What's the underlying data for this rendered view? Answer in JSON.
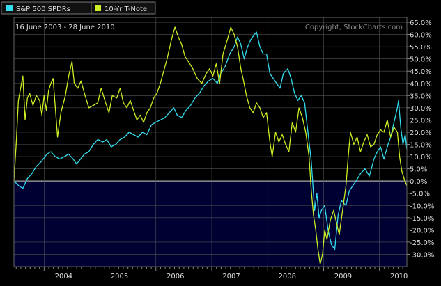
{
  "chart_data": {
    "type": "line",
    "date_range_label": "16 June 2003 - 28 June 2010",
    "copyright": "Copyright, StockCharts.com",
    "legend_position": "top-left",
    "grid": true,
    "y_unit": "percent change",
    "ylim": [
      -35,
      67
    ],
    "y_ticks": [
      "65.0%",
      "60.0%",
      "55.0%",
      "50.0%",
      "45.0%",
      "40.0%",
      "35.0%",
      "30.0%",
      "25.0%",
      "20.0%",
      "15.0%",
      "10.0%",
      "5.0%",
      "0.0%",
      "-5.0%",
      "-10.0%",
      "-15.0%",
      "-20.0%",
      "-25.0%",
      "-30.0%"
    ],
    "y_tick_values": [
      65,
      60,
      55,
      50,
      45,
      40,
      35,
      30,
      25,
      20,
      15,
      10,
      5,
      0,
      -5,
      -10,
      -15,
      -20,
      -25,
      -30
    ],
    "xlim": [
      2003.46,
      2010.49
    ],
    "x_ticks": [
      "2004",
      "2005",
      "2006",
      "2007",
      "2008",
      "2009",
      "2010"
    ],
    "x_tick_values": [
      2004.0,
      2005.0,
      2006.0,
      2007.0,
      2008.0,
      2009.0,
      2010.0
    ],
    "series": [
      {
        "name": "S&P 500 SPDRs",
        "color": "#33ddee",
        "points": [
          [
            2003.46,
            0
          ],
          [
            2003.55,
            -2
          ],
          [
            2003.62,
            -3
          ],
          [
            2003.7,
            1
          ],
          [
            2003.78,
            3
          ],
          [
            2003.86,
            6
          ],
          [
            2003.95,
            8
          ],
          [
            2004.05,
            11
          ],
          [
            2004.12,
            12
          ],
          [
            2004.2,
            10
          ],
          [
            2004.28,
            9
          ],
          [
            2004.36,
            10
          ],
          [
            2004.44,
            11
          ],
          [
            2004.52,
            9
          ],
          [
            2004.58,
            7
          ],
          [
            2004.65,
            9
          ],
          [
            2004.72,
            11
          ],
          [
            2004.8,
            12
          ],
          [
            2004.88,
            15
          ],
          [
            2004.96,
            17
          ],
          [
            2005.05,
            16
          ],
          [
            2005.12,
            17
          ],
          [
            2005.2,
            14
          ],
          [
            2005.28,
            15
          ],
          [
            2005.36,
            17
          ],
          [
            2005.44,
            18
          ],
          [
            2005.52,
            20
          ],
          [
            2005.6,
            19
          ],
          [
            2005.68,
            18
          ],
          [
            2005.76,
            20
          ],
          [
            2005.84,
            19
          ],
          [
            2005.92,
            23
          ],
          [
            2005.99,
            24
          ],
          [
            2006.08,
            25
          ],
          [
            2006.16,
            26
          ],
          [
            2006.24,
            28
          ],
          [
            2006.32,
            30
          ],
          [
            2006.38,
            27
          ],
          [
            2006.46,
            26
          ],
          [
            2006.54,
            29
          ],
          [
            2006.62,
            31
          ],
          [
            2006.7,
            34
          ],
          [
            2006.78,
            36
          ],
          [
            2006.86,
            39
          ],
          [
            2006.94,
            41
          ],
          [
            2007.02,
            42
          ],
          [
            2007.1,
            40
          ],
          [
            2007.16,
            44
          ],
          [
            2007.24,
            47
          ],
          [
            2007.32,
            52
          ],
          [
            2007.4,
            55
          ],
          [
            2007.46,
            59
          ],
          [
            2007.52,
            56
          ],
          [
            2007.58,
            50
          ],
          [
            2007.64,
            55
          ],
          [
            2007.7,
            58
          ],
          [
            2007.76,
            60
          ],
          [
            2007.8,
            61
          ],
          [
            2007.86,
            55
          ],
          [
            2007.92,
            52
          ],
          [
            2007.98,
            52
          ],
          [
            2008.04,
            44
          ],
          [
            2008.1,
            42
          ],
          [
            2008.16,
            40
          ],
          [
            2008.22,
            38
          ],
          [
            2008.28,
            44
          ],
          [
            2008.36,
            46
          ],
          [
            2008.42,
            42
          ],
          [
            2008.48,
            36
          ],
          [
            2008.54,
            33
          ],
          [
            2008.6,
            35
          ],
          [
            2008.66,
            32
          ],
          [
            2008.72,
            20
          ],
          [
            2008.78,
            8
          ],
          [
            2008.84,
            -12
          ],
          [
            2008.88,
            -5
          ],
          [
            2008.92,
            -15
          ],
          [
            2008.96,
            -12
          ],
          [
            2009.02,
            -10
          ],
          [
            2009.08,
            -20
          ],
          [
            2009.14,
            -26
          ],
          [
            2009.2,
            -28
          ],
          [
            2009.26,
            -14
          ],
          [
            2009.32,
            -8
          ],
          [
            2009.4,
            -10
          ],
          [
            2009.46,
            -4
          ],
          [
            2009.52,
            -2
          ],
          [
            2009.58,
            0
          ],
          [
            2009.66,
            3
          ],
          [
            2009.74,
            5
          ],
          [
            2009.82,
            2
          ],
          [
            2009.9,
            9
          ],
          [
            2009.96,
            12
          ],
          [
            2010.02,
            14
          ],
          [
            2010.08,
            9
          ],
          [
            2010.14,
            14
          ],
          [
            2010.2,
            18
          ],
          [
            2010.26,
            24
          ],
          [
            2010.32,
            30
          ],
          [
            2010.34,
            33
          ],
          [
            2010.38,
            22
          ],
          [
            2010.42,
            15
          ],
          [
            2010.46,
            19
          ],
          [
            2010.49,
            13
          ]
        ]
      },
      {
        "name": "10-Yr T-Note",
        "color": "#ccee22",
        "points": [
          [
            2003.46,
            0
          ],
          [
            2003.5,
            15
          ],
          [
            2003.54,
            33
          ],
          [
            2003.58,
            38
          ],
          [
            2003.62,
            43
          ],
          [
            2003.66,
            25
          ],
          [
            2003.7,
            34
          ],
          [
            2003.74,
            36
          ],
          [
            2003.8,
            31
          ],
          [
            2003.86,
            35
          ],
          [
            2003.92,
            33
          ],
          [
            2003.96,
            27
          ],
          [
            2004.0,
            35
          ],
          [
            2004.04,
            29
          ],
          [
            2004.08,
            37
          ],
          [
            2004.12,
            40
          ],
          [
            2004.16,
            42
          ],
          [
            2004.2,
            30
          ],
          [
            2004.24,
            18
          ],
          [
            2004.3,
            28
          ],
          [
            2004.38,
            35
          ],
          [
            2004.44,
            43
          ],
          [
            2004.5,
            49
          ],
          [
            2004.54,
            40
          ],
          [
            2004.6,
            38
          ],
          [
            2004.66,
            41
          ],
          [
            2004.72,
            36
          ],
          [
            2004.8,
            30
          ],
          [
            2004.88,
            31
          ],
          [
            2004.96,
            32
          ],
          [
            2005.02,
            38
          ],
          [
            2005.1,
            32
          ],
          [
            2005.16,
            28
          ],
          [
            2005.22,
            35
          ],
          [
            2005.3,
            34
          ],
          [
            2005.36,
            38
          ],
          [
            2005.42,
            32
          ],
          [
            2005.48,
            30
          ],
          [
            2005.54,
            33
          ],
          [
            2005.6,
            29
          ],
          [
            2005.66,
            25
          ],
          [
            2005.72,
            27
          ],
          [
            2005.78,
            24
          ],
          [
            2005.84,
            28
          ],
          [
            2005.9,
            30
          ],
          [
            2005.96,
            34
          ],
          [
            2006.02,
            36
          ],
          [
            2006.08,
            40
          ],
          [
            2006.14,
            45
          ],
          [
            2006.2,
            50
          ],
          [
            2006.28,
            58
          ],
          [
            2006.34,
            63
          ],
          [
            2006.4,
            59
          ],
          [
            2006.46,
            56
          ],
          [
            2006.52,
            51
          ],
          [
            2006.58,
            49
          ],
          [
            2006.66,
            46
          ],
          [
            2006.74,
            42
          ],
          [
            2006.82,
            40
          ],
          [
            2006.9,
            44
          ],
          [
            2006.96,
            46
          ],
          [
            2007.02,
            43
          ],
          [
            2007.08,
            48
          ],
          [
            2007.14,
            40
          ],
          [
            2007.2,
            52
          ],
          [
            2007.28,
            58
          ],
          [
            2007.34,
            63
          ],
          [
            2007.4,
            60
          ],
          [
            2007.46,
            55
          ],
          [
            2007.52,
            46
          ],
          [
            2007.56,
            42
          ],
          [
            2007.62,
            35
          ],
          [
            2007.68,
            30
          ],
          [
            2007.74,
            28
          ],
          [
            2007.8,
            32
          ],
          [
            2007.86,
            30
          ],
          [
            2007.92,
            26
          ],
          [
            2007.98,
            28
          ],
          [
            2008.04,
            16
          ],
          [
            2008.08,
            10
          ],
          [
            2008.14,
            20
          ],
          [
            2008.2,
            16
          ],
          [
            2008.26,
            19
          ],
          [
            2008.32,
            15
          ],
          [
            2008.38,
            12
          ],
          [
            2008.44,
            24
          ],
          [
            2008.5,
            20
          ],
          [
            2008.56,
            30
          ],
          [
            2008.62,
            26
          ],
          [
            2008.68,
            20
          ],
          [
            2008.74,
            10
          ],
          [
            2008.78,
            -4
          ],
          [
            2008.82,
            -14
          ],
          [
            2008.86,
            -20
          ],
          [
            2008.9,
            -28
          ],
          [
            2008.94,
            -34
          ],
          [
            2008.98,
            -30
          ],
          [
            2009.02,
            -20
          ],
          [
            2009.06,
            -24
          ],
          [
            2009.12,
            -16
          ],
          [
            2009.18,
            -12
          ],
          [
            2009.24,
            -18
          ],
          [
            2009.28,
            -22
          ],
          [
            2009.34,
            -12
          ],
          [
            2009.4,
            -2
          ],
          [
            2009.44,
            10
          ],
          [
            2009.48,
            20
          ],
          [
            2009.54,
            15
          ],
          [
            2009.6,
            18
          ],
          [
            2009.66,
            12
          ],
          [
            2009.72,
            16
          ],
          [
            2009.78,
            19
          ],
          [
            2009.84,
            14
          ],
          [
            2009.9,
            15
          ],
          [
            2009.96,
            19
          ],
          [
            2010.02,
            21
          ],
          [
            2010.08,
            20
          ],
          [
            2010.14,
            25
          ],
          [
            2010.2,
            18
          ],
          [
            2010.26,
            22
          ],
          [
            2010.32,
            20
          ],
          [
            2010.36,
            10
          ],
          [
            2010.4,
            4
          ],
          [
            2010.44,
            1
          ],
          [
            2010.49,
            -2
          ]
        ]
      }
    ]
  },
  "colors": {
    "background": "#000000",
    "plot_background_upper": "#000000",
    "plot_background_lower": "#000033",
    "grid": "#555555",
    "zero_line": "#aaaaaa",
    "text": "#dddddd",
    "copyright_text": "#888888",
    "legend_border": "#777777"
  }
}
